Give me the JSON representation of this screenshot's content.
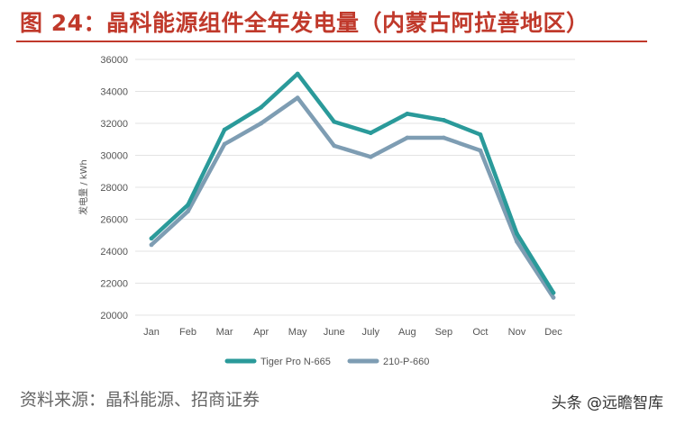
{
  "figure": {
    "title": "图 24：晶科能源组件全年发电量（内蒙古阿拉善地区）",
    "title_color": "#c0392b"
  },
  "footer": {
    "source": "资料来源：晶科能源、招商证券",
    "watermark": "头条 @远瞻智库"
  },
  "chart_data": {
    "type": "line",
    "title": "",
    "xlabel": "",
    "ylabel": "发电量 / kWh",
    "ylim": [
      20000,
      36000
    ],
    "yticks": [
      20000,
      22000,
      24000,
      26000,
      28000,
      30000,
      32000,
      34000,
      36000
    ],
    "grid": true,
    "legend_position": "bottom",
    "categories": [
      "Jan",
      "Feb",
      "Mar",
      "Apr",
      "May",
      "June",
      "July",
      "Aug",
      "Sep",
      "Oct",
      "Nov",
      "Dec"
    ],
    "series": [
      {
        "name": "Tiger Pro N-665",
        "color": "#2a9a9a",
        "values": [
          24800,
          26900,
          31600,
          33000,
          35100,
          32100,
          31400,
          32600,
          32200,
          31300,
          25100,
          21400
        ]
      },
      {
        "name": "210-P-660",
        "color": "#7e9db3",
        "values": [
          24400,
          26500,
          30700,
          32000,
          33600,
          30600,
          29900,
          31100,
          31100,
          30300,
          24600,
          21100
        ]
      }
    ]
  }
}
